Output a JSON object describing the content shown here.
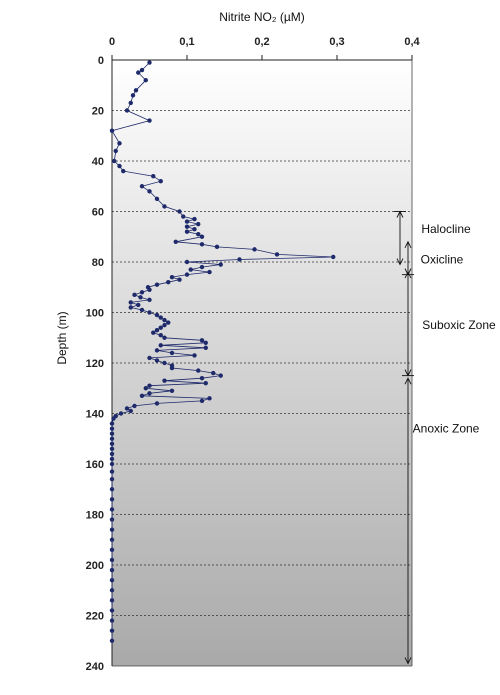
{
  "chart_data": {
    "type": "scatter",
    "title": "",
    "xlabel": "Nitrite NO₂ (µM)",
    "ylabel": "Depth (m)",
    "xlim": [
      0,
      0.4
    ],
    "ylim": [
      0,
      240
    ],
    "y_inverted": true,
    "x_axis_position": "top",
    "x_ticks": [
      "0",
      "0,1",
      "0,2",
      "0,3",
      "0,4"
    ],
    "y_ticks": [
      "0",
      "20",
      "40",
      "60",
      "80",
      "100",
      "120",
      "140",
      "160",
      "180",
      "200",
      "220",
      "240"
    ],
    "grid": "horizontal dashed",
    "series": [
      {
        "color": "#1f2a6b",
        "points": [
          [
            0.05,
            1
          ],
          [
            0.04,
            4
          ],
          [
            0.035,
            5
          ],
          [
            0.045,
            8
          ],
          [
            0.032,
            12
          ],
          [
            0.028,
            14
          ],
          [
            0.025,
            17
          ],
          [
            0.02,
            20
          ],
          [
            0.05,
            24
          ],
          [
            0,
            28
          ],
          [
            0.01,
            33
          ],
          [
            0.005,
            36
          ],
          [
            0.003,
            40
          ],
          [
            0.01,
            42
          ],
          [
            0.015,
            44
          ],
          [
            0.055,
            46
          ],
          [
            0.065,
            48
          ],
          [
            0.04,
            50
          ],
          [
            0.05,
            52
          ],
          [
            0.06,
            55
          ],
          [
            0.07,
            58
          ],
          [
            0.09,
            60
          ],
          [
            0.095,
            62
          ],
          [
            0.11,
            63
          ],
          [
            0.1,
            64
          ],
          [
            0.115,
            65
          ],
          [
            0.1,
            66
          ],
          [
            0.11,
            67
          ],
          [
            0.1,
            68
          ],
          [
            0.115,
            69
          ],
          [
            0.12,
            70
          ],
          [
            0.085,
            72
          ],
          [
            0.12,
            73
          ],
          [
            0.14,
            74
          ],
          [
            0.19,
            75
          ],
          [
            0.22,
            77
          ],
          [
            0.295,
            78
          ],
          [
            0.17,
            79
          ],
          [
            0.1,
            80
          ],
          [
            0.145,
            81
          ],
          [
            0.12,
            82
          ],
          [
            0.105,
            83
          ],
          [
            0.13,
            84
          ],
          [
            0.1,
            85
          ],
          [
            0.08,
            86
          ],
          [
            0.09,
            87
          ],
          [
            0.075,
            88
          ],
          [
            0.06,
            89
          ],
          [
            0.048,
            90
          ],
          [
            0.05,
            91
          ],
          [
            0.04,
            92
          ],
          [
            0.03,
            93
          ],
          [
            0.038,
            94
          ],
          [
            0.05,
            95
          ],
          [
            0.025,
            96
          ],
          [
            0.035,
            97
          ],
          [
            0.025,
            98
          ],
          [
            0.04,
            99
          ],
          [
            0.05,
            100
          ],
          [
            0.06,
            101
          ],
          [
            0.065,
            102
          ],
          [
            0.07,
            103
          ],
          [
            0.075,
            104
          ],
          [
            0.07,
            105
          ],
          [
            0.065,
            106
          ],
          [
            0.06,
            107
          ],
          [
            0.055,
            108
          ],
          [
            0.065,
            109
          ],
          [
            0.07,
            110
          ],
          [
            0.12,
            111
          ],
          [
            0.125,
            112
          ],
          [
            0.065,
            113
          ],
          [
            0.125,
            114
          ],
          [
            0.06,
            115
          ],
          [
            0.08,
            116
          ],
          [
            0.11,
            117
          ],
          [
            0.05,
            118
          ],
          [
            0.06,
            119
          ],
          [
            0.07,
            120
          ],
          [
            0.08,
            121
          ],
          [
            0.08,
            122
          ],
          [
            0.115,
            123
          ],
          [
            0.135,
            124
          ],
          [
            0.145,
            125
          ],
          [
            0.12,
            126
          ],
          [
            0.07,
            127
          ],
          [
            0.125,
            128
          ],
          [
            0.05,
            129
          ],
          [
            0.045,
            130
          ],
          [
            0.08,
            131
          ],
          [
            0.05,
            132
          ],
          [
            0.04,
            133
          ],
          [
            0.13,
            134
          ],
          [
            0.12,
            135
          ],
          [
            0.06,
            136
          ],
          [
            0.03,
            137
          ],
          [
            0.02,
            138
          ],
          [
            0.025,
            139
          ],
          [
            0.012,
            140
          ],
          [
            0.005,
            141
          ],
          [
            0.002,
            142
          ],
          [
            0,
            144
          ],
          [
            0,
            146
          ],
          [
            0,
            148
          ],
          [
            0,
            150
          ],
          [
            0,
            152
          ],
          [
            0,
            154
          ],
          [
            0,
            156
          ],
          [
            0,
            158
          ],
          [
            0,
            160
          ],
          [
            0,
            163
          ],
          [
            0,
            166
          ],
          [
            0,
            170
          ],
          [
            0,
            174
          ],
          [
            0,
            178
          ],
          [
            0,
            182
          ],
          [
            0,
            186
          ],
          [
            0,
            190
          ],
          [
            0,
            194
          ],
          [
            0,
            198
          ],
          [
            0,
            202
          ],
          [
            0,
            206
          ],
          [
            0,
            210
          ],
          [
            0,
            214
          ],
          [
            0,
            218
          ],
          [
            0,
            222
          ],
          [
            0,
            226
          ],
          [
            0,
            230
          ]
        ]
      }
    ],
    "zones": [
      {
        "label": "Halocline",
        "top": 60,
        "bottom": 81
      },
      {
        "label": "Oxicline",
        "top": 72,
        "bottom": 85
      },
      {
        "label": "Suboxic Zone",
        "top": 84,
        "bottom": 125
      },
      {
        "label": "Anoxic Zone",
        "top": 126,
        "bottom": 239
      }
    ]
  }
}
